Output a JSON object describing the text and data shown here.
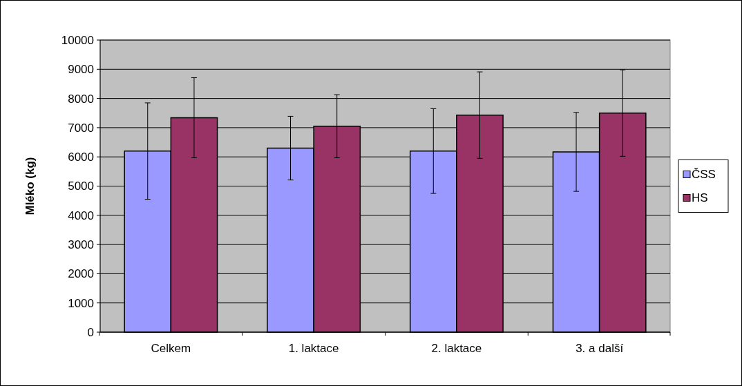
{
  "chart_data": {
    "type": "bar",
    "ylabel": "Mléko (kg)",
    "categories": [
      "Celkem",
      "1. laktace",
      "2. laktace",
      "3. a další"
    ],
    "series": [
      {
        "name": "ČSS",
        "color": "#9999ff",
        "values": [
          6200,
          6300,
          6200,
          6170
        ],
        "errors": [
          1650,
          1090,
          1450,
          1350
        ]
      },
      {
        "name": "HS",
        "color": "#993366",
        "values": [
          7340,
          7050,
          7430,
          7500
        ],
        "errors": [
          1370,
          1080,
          1480,
          1480
        ]
      }
    ],
    "ylim": [
      0,
      10000
    ],
    "yticks": [
      0,
      1000,
      2000,
      3000,
      4000,
      5000,
      6000,
      7000,
      8000,
      9000,
      10000
    ],
    "grid": "y",
    "legend": "right"
  }
}
